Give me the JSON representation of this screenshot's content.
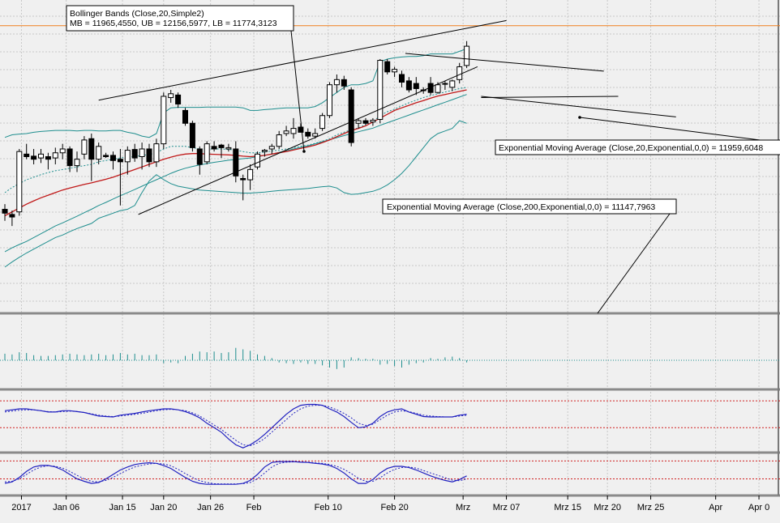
{
  "colors": {
    "background": "#f0f0f0",
    "grid": "#c8c8c8",
    "separator": "#8a8a8a",
    "candle": "#000000",
    "bb_band": "#1e8e8e",
    "bb_mid": "#1e8e8e",
    "ema20": "#c01818",
    "ema200": "#1e8e8e",
    "trendline": "#000000",
    "price_line": "#f08020",
    "volume": "#1e8e8e",
    "stoch_k": "#2020c0",
    "stoch_d": "#2020c0",
    "threshold": "#d02020"
  },
  "annotations": {
    "bollinger_title": "Bollinger Bands (Close,20,Simple2)",
    "bollinger_values": "MB = 11965,4550, UB = 12156,5977, LB = 11774,3123",
    "ema20": "Exponential Moving Average (Close,20,Exponential,0,0) = 11959,6048",
    "ema200": "Exponential Moving Average (Close,200,Exponential,0,0) = 11147,7963"
  },
  "chart_data": {
    "type": "candlestick",
    "title": "Bollinger Bands (Close,20,Simple2)",
    "xlabel": "",
    "ylabel": "",
    "ylim": [
      11000,
      12220
    ],
    "grid": true,
    "x_tick_labels": [
      "2017",
      "Jan 06",
      "Jan 15",
      "Jan 20",
      "Jan 26",
      "Feb",
      "Feb 10",
      "Feb 20",
      "Mrz",
      "Mrz 07",
      "Mrz 15",
      "Mrz 20",
      "Mrz 25",
      "Apr",
      "Apr 0"
    ],
    "x_tick_slots": [
      2.3,
      8.5,
      16.3,
      22,
      28.5,
      34.5,
      44.8,
      54,
      63.5,
      69.5,
      78,
      83.5,
      89.5,
      98.5,
      104.5
    ],
    "candles": [
      {
        "o": 11405,
        "h": 11425,
        "l": 11360,
        "c": 11390
      },
      {
        "o": 11385,
        "h": 11400,
        "l": 11340,
        "c": 11375
      },
      {
        "o": 11395,
        "h": 11640,
        "l": 11380,
        "c": 11630
      },
      {
        "o": 11620,
        "h": 11660,
        "l": 11600,
        "c": 11610
      },
      {
        "o": 11612,
        "h": 11640,
        "l": 11580,
        "c": 11600
      },
      {
        "o": 11605,
        "h": 11640,
        "l": 11585,
        "c": 11620
      },
      {
        "o": 11610,
        "h": 11625,
        "l": 11560,
        "c": 11600
      },
      {
        "o": 11605,
        "h": 11645,
        "l": 11580,
        "c": 11625
      },
      {
        "o": 11625,
        "h": 11660,
        "l": 11600,
        "c": 11640
      },
      {
        "o": 11640,
        "h": 11650,
        "l": 11550,
        "c": 11575
      },
      {
        "o": 11575,
        "h": 11630,
        "l": 11550,
        "c": 11600
      },
      {
        "o": 11620,
        "h": 11690,
        "l": 11600,
        "c": 11675
      },
      {
        "o": 11680,
        "h": 11700,
        "l": 11515,
        "c": 11600
      },
      {
        "o": 11600,
        "h": 11665,
        "l": 11580,
        "c": 11650
      },
      {
        "o": 11615,
        "h": 11625,
        "l": 11605,
        "c": 11610
      },
      {
        "o": 11615,
        "h": 11630,
        "l": 11560,
        "c": 11595
      },
      {
        "o": 11600,
        "h": 11640,
        "l": 11420,
        "c": 11590
      },
      {
        "o": 11590,
        "h": 11650,
        "l": 11540,
        "c": 11635
      },
      {
        "o": 11638,
        "h": 11660,
        "l": 11590,
        "c": 11605
      },
      {
        "o": 11610,
        "h": 11665,
        "l": 11560,
        "c": 11640
      },
      {
        "o": 11640,
        "h": 11660,
        "l": 11570,
        "c": 11590
      },
      {
        "o": 11590,
        "h": 11680,
        "l": 11570,
        "c": 11660
      },
      {
        "o": 11660,
        "h": 11860,
        "l": 11640,
        "c": 11845
      },
      {
        "o": 11840,
        "h": 11870,
        "l": 11820,
        "c": 11855
      },
      {
        "o": 11850,
        "h": 11860,
        "l": 11800,
        "c": 11815
      },
      {
        "o": 11790,
        "h": 11800,
        "l": 11730,
        "c": 11740
      },
      {
        "o": 11740,
        "h": 11750,
        "l": 11630,
        "c": 11645
      },
      {
        "o": 11640,
        "h": 11650,
        "l": 11540,
        "c": 11580
      },
      {
        "o": 11590,
        "h": 11670,
        "l": 11580,
        "c": 11660
      },
      {
        "o": 11650,
        "h": 11670,
        "l": 11630,
        "c": 11640
      },
      {
        "o": 11655,
        "h": 11660,
        "l": 11605,
        "c": 11645
      },
      {
        "o": 11640,
        "h": 11660,
        "l": 11630,
        "c": 11645
      },
      {
        "o": 11640,
        "h": 11670,
        "l": 11510,
        "c": 11535
      },
      {
        "o": 11525,
        "h": 11540,
        "l": 11440,
        "c": 11520
      },
      {
        "o": 11520,
        "h": 11580,
        "l": 11480,
        "c": 11560
      },
      {
        "o": 11570,
        "h": 11630,
        "l": 11560,
        "c": 11620
      },
      {
        "o": 11630,
        "h": 11640,
        "l": 11610,
        "c": 11635
      },
      {
        "o": 11640,
        "h": 11660,
        "l": 11620,
        "c": 11650
      },
      {
        "o": 11650,
        "h": 11710,
        "l": 11640,
        "c": 11695
      },
      {
        "o": 11700,
        "h": 11730,
        "l": 11690,
        "c": 11710
      },
      {
        "o": 11700,
        "h": 11760,
        "l": 11680,
        "c": 11720
      },
      {
        "o": 11725,
        "h": 11740,
        "l": 11705,
        "c": 11705
      },
      {
        "o": 11705,
        "h": 11720,
        "l": 11680,
        "c": 11690
      },
      {
        "o": 11690,
        "h": 11720,
        "l": 11680,
        "c": 11700
      },
      {
        "o": 11720,
        "h": 11780,
        "l": 11710,
        "c": 11770
      },
      {
        "o": 11770,
        "h": 11900,
        "l": 11760,
        "c": 11890
      },
      {
        "o": 11890,
        "h": 11930,
        "l": 11860,
        "c": 11910
      },
      {
        "o": 11910,
        "h": 11925,
        "l": 11870,
        "c": 11885
      },
      {
        "o": 11870,
        "h": 11880,
        "l": 11650,
        "c": 11665
      },
      {
        "o": 11740,
        "h": 11760,
        "l": 11720,
        "c": 11750
      },
      {
        "o": 11750,
        "h": 11760,
        "l": 11735,
        "c": 11740
      },
      {
        "o": 11745,
        "h": 11760,
        "l": 11730,
        "c": 11752
      },
      {
        "o": 11755,
        "h": 11990,
        "l": 11740,
        "c": 11985
      },
      {
        "o": 11980,
        "h": 11990,
        "l": 11930,
        "c": 11940
      },
      {
        "o": 11940,
        "h": 11960,
        "l": 11920,
        "c": 11950
      },
      {
        "o": 11930,
        "h": 11945,
        "l": 11880,
        "c": 11900
      },
      {
        "o": 11905,
        "h": 11920,
        "l": 11860,
        "c": 11870
      },
      {
        "o": 11895,
        "h": 11920,
        "l": 11850,
        "c": 11875
      },
      {
        "o": 11870,
        "h": 11880,
        "l": 11855,
        "c": 11868
      },
      {
        "o": 11895,
        "h": 11920,
        "l": 11850,
        "c": 11860
      },
      {
        "o": 11860,
        "h": 11900,
        "l": 11855,
        "c": 11890
      },
      {
        "o": 11895,
        "h": 11905,
        "l": 11870,
        "c": 11895
      },
      {
        "o": 11880,
        "h": 11910,
        "l": 11865,
        "c": 11905
      },
      {
        "o": 11910,
        "h": 11975,
        "l": 11895,
        "c": 11960
      },
      {
        "o": 11965,
        "h": 12060,
        "l": 11955,
        "c": 12040
      }
    ],
    "bb_upper": [
      11685,
      11695,
      11698,
      11700,
      11705,
      11708,
      11710,
      11712,
      11712,
      11712,
      11710,
      11712,
      11712,
      11710,
      11710,
      11712,
      11712,
      11705,
      11700,
      11690,
      11685,
      11700,
      11780,
      11800,
      11802,
      11802,
      11802,
      11802,
      11803,
      11803,
      11803,
      11803,
      11803,
      11800,
      11790,
      11790,
      11793,
      11795,
      11798,
      11800,
      11800,
      11800,
      11800,
      11805,
      11820,
      11840,
      11860,
      11880,
      11890,
      11890,
      11895,
      11905,
      11980,
      11990,
      11995,
      11998,
      12000,
      12000,
      12003,
      12010,
      12010,
      12010,
      12010,
      12020,
      12030
    ],
    "bb_mid": [
      11470,
      11490,
      11505,
      11520,
      11530,
      11540,
      11548,
      11555,
      11560,
      11565,
      11570,
      11575,
      11580,
      11590,
      11595,
      11600,
      11605,
      11608,
      11610,
      11615,
      11618,
      11625,
      11640,
      11650,
      11650,
      11650,
      11645,
      11640,
      11640,
      11640,
      11640,
      11638,
      11635,
      11630,
      11625,
      11625,
      11628,
      11632,
      11636,
      11640,
      11645,
      11650,
      11655,
      11662,
      11670,
      11680,
      11695,
      11705,
      11715,
      11722,
      11735,
      11745,
      11770,
      11785,
      11795,
      11808,
      11820,
      11830,
      11840,
      11848,
      11855,
      11862,
      11868,
      11875,
      11880
    ],
    "bb_lower": [
      11180,
      11200,
      11218,
      11235,
      11250,
      11265,
      11280,
      11295,
      11305,
      11318,
      11330,
      11340,
      11350,
      11370,
      11380,
      11390,
      11400,
      11405,
      11420,
      11470,
      11515,
      11540,
      11520,
      11505,
      11495,
      11490,
      11485,
      11480,
      11478,
      11476,
      11474,
      11472,
      11470,
      11468,
      11468,
      11470,
      11472,
      11475,
      11478,
      11480,
      11482,
      11484,
      11486,
      11490,
      11493,
      11495,
      11488,
      11470,
      11463,
      11465,
      11470,
      11475,
      11485,
      11500,
      11520,
      11545,
      11575,
      11610,
      11645,
      11680,
      11700,
      11710,
      11720,
      11750,
      11740
    ],
    "ema20": [
      11380,
      11395,
      11410,
      11425,
      11438,
      11450,
      11460,
      11470,
      11480,
      11488,
      11495,
      11502,
      11508,
      11515,
      11522,
      11530,
      11540,
      11550,
      11560,
      11570,
      11580,
      11590,
      11600,
      11608,
      11615,
      11620,
      11622,
      11622,
      11620,
      11619,
      11618,
      11617,
      11615,
      11612,
      11610,
      11612,
      11615,
      11620,
      11625,
      11630,
      11636,
      11642,
      11648,
      11655,
      11665,
      11675,
      11688,
      11700,
      11712,
      11720,
      11730,
      11745,
      11760,
      11775,
      11790,
      11800,
      11810,
      11820,
      11828,
      11838,
      11846,
      11852,
      11858,
      11864,
      11870
    ],
    "ema200": [
      11240,
      11255,
      11268,
      11280,
      11295,
      11310,
      11325,
      11340,
      11352,
      11365,
      11378,
      11392,
      11405,
      11420,
      11432,
      11445,
      11458,
      11470,
      11482,
      11495,
      11508,
      11520,
      11532,
      11545,
      11556,
      11565,
      11572,
      11578,
      11583,
      11588,
      11592,
      11596,
      11599,
      11602,
      11605,
      11610,
      11615,
      11620,
      11627,
      11633,
      11640,
      11646,
      11652,
      11660,
      11668,
      11676,
      11684,
      11692,
      11700,
      11707,
      11714,
      11721,
      11732,
      11742,
      11752,
      11762,
      11772,
      11782,
      11792,
      11802,
      11812,
      11822,
      11832,
      11842,
      11852
    ],
    "volume_bars": [
      0.45,
      0.4,
      0.55,
      0.5,
      0.35,
      0.3,
      0.3,
      0.35,
      0.4,
      0.45,
      0.4,
      0.35,
      0.4,
      0.45,
      0.35,
      0.4,
      0.5,
      0.4,
      0.45,
      0.35,
      0.35,
      0.4,
      -0.2,
      -0.15,
      -0.2,
      0.3,
      0.45,
      0.6,
      0.55,
      0.6,
      0.5,
      0.55,
      0.85,
      0.75,
      0.65,
      0.4,
      0.3,
      0.15,
      -0.15,
      -0.2,
      -0.25,
      -0.15,
      -0.25,
      -0.25,
      -0.35,
      -0.5,
      -0.6,
      -0.5,
      0.2,
      0.15,
      0.1,
      0.1,
      -0.3,
      -0.25,
      -0.4,
      -0.5,
      -0.3,
      -0.2,
      -0.15,
      0.15,
      0.1,
      0.2,
      0.25,
      0.15,
      -0.15
    ],
    "stoch1_k": [
      58,
      60,
      62,
      62,
      60,
      58,
      55,
      55,
      58,
      58,
      56,
      54,
      50,
      46,
      45,
      44,
      48,
      50,
      52,
      55,
      58,
      60,
      62,
      62,
      60,
      56,
      50,
      42,
      30,
      20,
      10,
      -5,
      -18,
      -25,
      -18,
      -8,
      5,
      20,
      35,
      50,
      62,
      70,
      72,
      72,
      70,
      62,
      55,
      45,
      32,
      20,
      22,
      30,
      45,
      55,
      60,
      62,
      55,
      50,
      45,
      44,
      44,
      44,
      44,
      48,
      50
    ],
    "stoch1_d": [
      55,
      57,
      59,
      60,
      60,
      58,
      56,
      55,
      56,
      57,
      56,
      54,
      51,
      48,
      46,
      45,
      46,
      48,
      50,
      52,
      55,
      58,
      60,
      61,
      60,
      58,
      53,
      46,
      36,
      26,
      16,
      4,
      -8,
      -18,
      -20,
      -14,
      -4,
      10,
      24,
      38,
      52,
      62,
      68,
      70,
      70,
      66,
      60,
      52,
      42,
      30,
      25,
      28,
      38,
      48,
      55,
      58,
      56,
      52,
      48,
      46,
      45,
      44,
      44,
      46,
      48
    ],
    "stoch2_k": [
      5,
      10,
      25,
      45,
      60,
      65,
      65,
      60,
      50,
      35,
      20,
      12,
      5,
      8,
      20,
      35,
      50,
      60,
      68,
      72,
      74,
      72,
      65,
      55,
      40,
      25,
      12,
      5,
      2,
      2,
      2,
      2,
      2,
      5,
      15,
      35,
      60,
      75,
      78,
      78,
      78,
      76,
      75,
      72,
      70,
      65,
      55,
      40,
      20,
      5,
      5,
      18,
      40,
      55,
      62,
      62,
      58,
      50,
      40,
      30,
      22,
      15,
      10,
      18,
      30
    ],
    "stoch2_d": [
      10,
      12,
      20,
      35,
      50,
      60,
      64,
      62,
      56,
      45,
      32,
      20,
      12,
      10,
      15,
      25,
      38,
      50,
      60,
      66,
      70,
      72,
      70,
      64,
      52,
      38,
      25,
      14,
      8,
      4,
      3,
      3,
      3,
      4,
      8,
      20,
      40,
      60,
      72,
      76,
      77,
      77,
      76,
      74,
      72,
      68,
      62,
      52,
      38,
      22,
      12,
      12,
      24,
      40,
      52,
      58,
      60,
      56,
      48,
      40,
      32,
      24,
      16,
      14,
      20
    ],
    "trendlines": [
      {
        "from": [
          13,
          11830
        ],
        "to": [
          69.5,
          12140
        ]
      },
      {
        "from": [
          18.5,
          11385
        ],
        "to": [
          65.5,
          11960
        ]
      },
      {
        "from": [
          55.5,
          12012
        ],
        "to": [
          83,
          11943
        ]
      },
      {
        "from": [
          66,
          11840
        ],
        "to": [
          85,
          11845
        ]
      },
      {
        "from": [
          66,
          11845
        ],
        "to": [
          93,
          11765
        ]
      }
    ],
    "last_price": 12120
  }
}
